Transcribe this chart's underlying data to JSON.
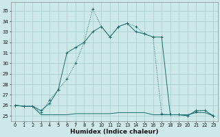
{
  "xlabel": "Humidex (Indice chaleur)",
  "bg_color": "#cce8e8",
  "grid_color": "#aacfcf",
  "line_color": "#1a6b6b",
  "xlim": [
    -0.5,
    23.5
  ],
  "ylim": [
    24.5,
    35.8
  ],
  "yticks": [
    25,
    26,
    27,
    28,
    29,
    30,
    31,
    32,
    33,
    34,
    35
  ],
  "xticks": [
    0,
    1,
    2,
    3,
    4,
    5,
    6,
    7,
    8,
    9,
    10,
    11,
    12,
    13,
    14,
    15,
    16,
    17,
    18,
    19,
    20,
    21,
    22,
    23
  ],
  "series_flat_x": [
    0,
    1,
    2,
    3,
    4,
    5,
    6,
    7,
    8,
    9,
    10,
    11,
    12,
    13,
    14,
    15,
    16,
    17,
    18,
    19,
    20,
    21,
    22,
    23
  ],
  "series_flat_y": [
    26.0,
    25.9,
    25.9,
    25.1,
    25.1,
    25.1,
    25.1,
    25.2,
    25.2,
    25.2,
    25.2,
    25.2,
    25.3,
    25.3,
    25.3,
    25.3,
    25.1,
    25.1,
    25.1,
    25.1,
    25.1,
    25.3,
    25.3,
    25.0
  ],
  "series_dotted_x": [
    0,
    1,
    2,
    3,
    4,
    5,
    6,
    7,
    8,
    9,
    10,
    11,
    12,
    13,
    14,
    15,
    16,
    17,
    18,
    19,
    20,
    21,
    22,
    23
  ],
  "series_dotted_y": [
    26.0,
    25.9,
    25.9,
    25.3,
    26.5,
    27.5,
    28.5,
    30.0,
    32.0,
    35.2,
    33.5,
    32.5,
    33.5,
    33.8,
    33.5,
    32.8,
    32.5,
    25.2,
    25.1,
    25.1,
    25.0,
    25.4,
    25.5,
    25.0
  ],
  "series_solid_x": [
    0,
    1,
    2,
    3,
    4,
    5,
    6,
    7,
    8,
    9,
    10,
    11,
    12,
    13,
    14,
    15,
    16,
    17,
    18,
    19,
    20,
    21,
    22,
    23
  ],
  "series_solid_y": [
    26.0,
    25.9,
    25.9,
    25.5,
    26.2,
    27.5,
    31.0,
    31.5,
    32.0,
    33.0,
    33.5,
    32.5,
    33.5,
    33.8,
    33.0,
    32.8,
    32.5,
    32.5,
    25.1,
    25.1,
    25.0,
    25.5,
    25.5,
    25.0
  ]
}
